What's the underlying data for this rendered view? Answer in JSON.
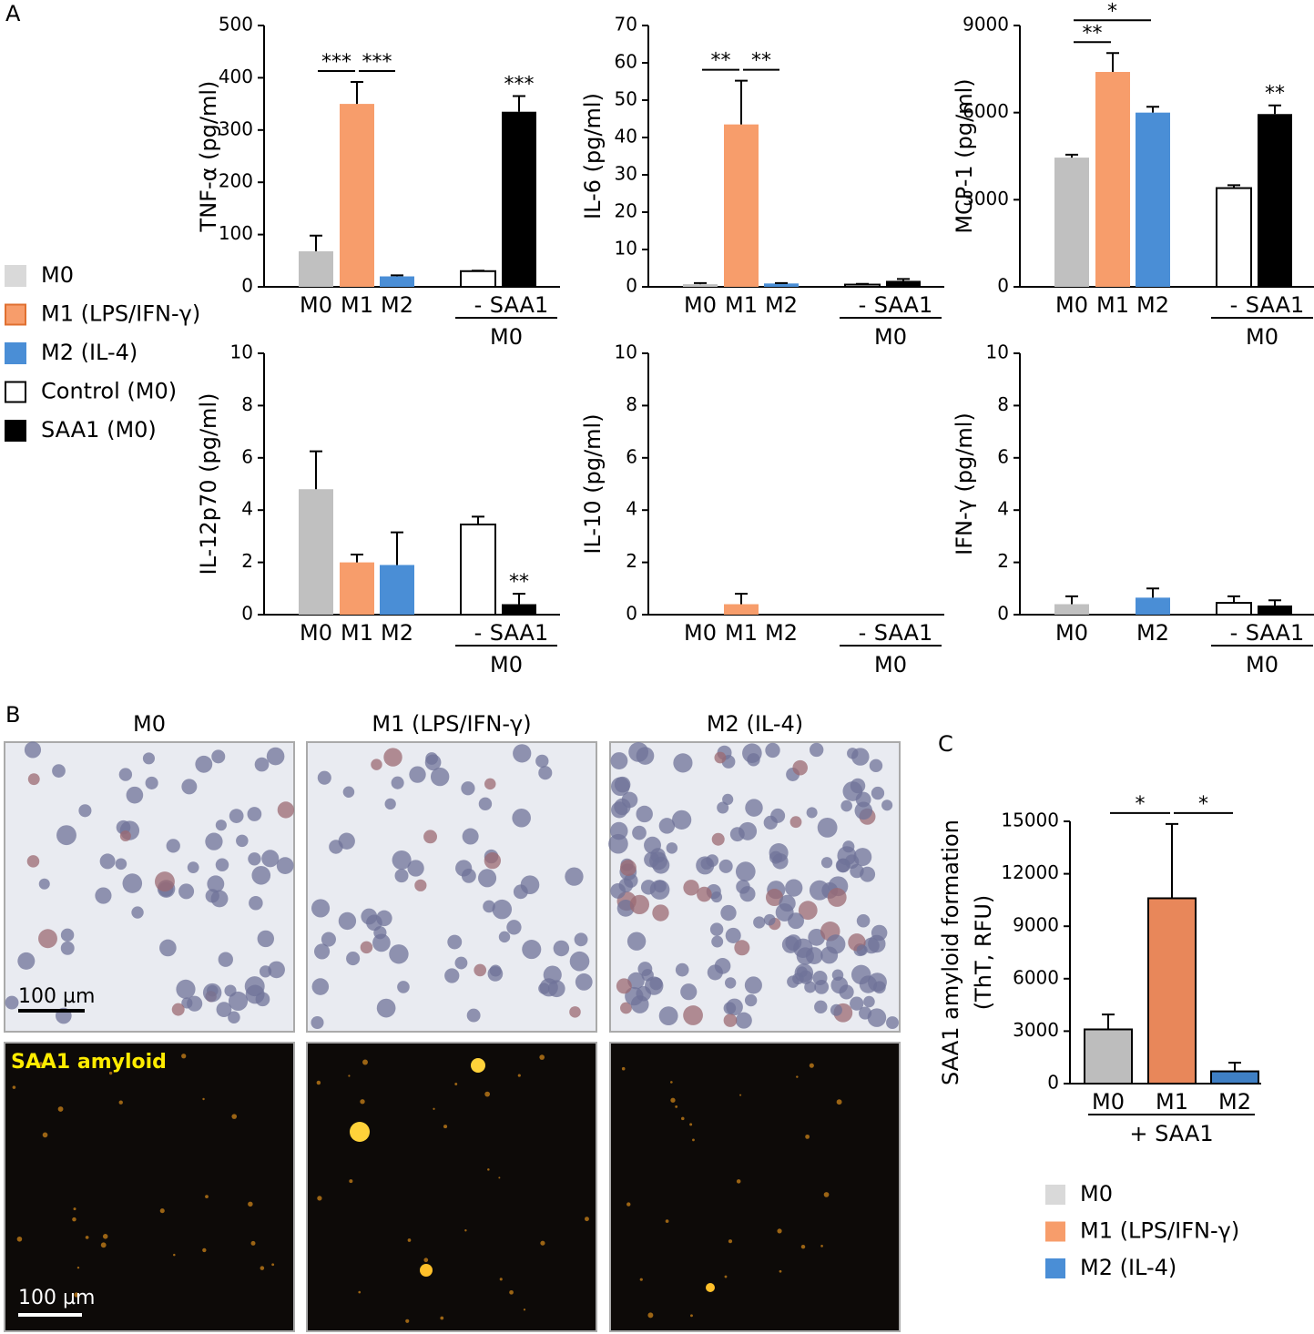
{
  "panel_labels": [
    "A",
    "B",
    "C"
  ],
  "legend_a": [
    {
      "name": "M0",
      "color": "#d9d9d9"
    },
    {
      "name": "M1 (LPS/IFN-γ)",
      "color": "#f79d6b"
    },
    {
      "name": "M2 (IL-4)",
      "color": "#4a8ed6"
    },
    {
      "name": "Control (M0)",
      "color": "#ffffff"
    },
    {
      "name": "SAA1 (M0)",
      "color": "#000000"
    }
  ],
  "panel_b": {
    "columns": [
      "M0",
      "M1 (LPS/IFN-γ)",
      "M2 (IL-4)"
    ],
    "scale_bar": "100 µm",
    "fluor_label": "SAA1 amyloid"
  },
  "chart_data": [
    {
      "type": "bar",
      "ylabel": "TNF-α (pg/ml)",
      "categories": [
        "M0",
        "M1",
        "M2",
        "-",
        "SAA1"
      ],
      "group_label": "M0",
      "values": [
        68,
        350,
        20,
        30,
        335
      ],
      "errors": [
        30,
        42,
        2,
        1,
        30
      ],
      "colors": [
        "#c0c0c0",
        "#f79d6b",
        "#4a8ed6",
        "#ffffff",
        "#000000"
      ],
      "ylim": [
        0,
        500
      ],
      "yticks": [
        0,
        100,
        200,
        300,
        400,
        500
      ],
      "annotations": [
        {
          "label": "***",
          "between": [
            0,
            1
          ]
        },
        {
          "label": "***",
          "between": [
            1,
            2
          ]
        },
        {
          "label": "***",
          "bar": 4
        }
      ]
    },
    {
      "type": "bar",
      "ylabel": "IL-6 (pg/ml)",
      "categories": [
        "M0",
        "M1",
        "M2",
        "-",
        "SAA1"
      ],
      "group_label": "M0",
      "values": [
        0.7,
        43.5,
        0.9,
        0.6,
        1.6
      ],
      "errors": [
        0.3,
        11.7,
        0.1,
        0.2,
        0.5
      ],
      "colors": [
        "#c0c0c0",
        "#f79d6b",
        "#4a8ed6",
        "#ffffff",
        "#000000"
      ],
      "ylim": [
        0,
        70
      ],
      "yticks": [
        0,
        10,
        20,
        30,
        40,
        50,
        60,
        70
      ],
      "annotations": [
        {
          "label": "**",
          "between": [
            0,
            1
          ]
        },
        {
          "label": "**",
          "between": [
            1,
            2
          ]
        }
      ]
    },
    {
      "type": "bar",
      "ylabel": "MCP-1 (pg/ml)",
      "categories": [
        "M0",
        "M1",
        "M2",
        "-",
        "SAA1"
      ],
      "group_label": "M0",
      "values": [
        4450,
        7400,
        6000,
        3400,
        5950
      ],
      "errors": [
        100,
        650,
        200,
        100,
        300
      ],
      "colors": [
        "#c0c0c0",
        "#f79d6b",
        "#4a8ed6",
        "#ffffff",
        "#000000"
      ],
      "ylim": [
        0,
        9000
      ],
      "yticks": [
        0,
        3000,
        6000,
        9000
      ],
      "annotations": [
        {
          "label": "**",
          "between": [
            0,
            1
          ]
        },
        {
          "label": "*",
          "between": [
            0,
            2
          ]
        },
        {
          "label": "**",
          "bar": 4
        }
      ]
    },
    {
      "type": "bar",
      "ylabel": "IL-12p70 (pg/ml)",
      "categories": [
        "M0",
        "M1",
        "M2",
        "-",
        "SAA1"
      ],
      "group_label": "M0",
      "values": [
        4.8,
        2.0,
        1.9,
        3.45,
        0.4
      ],
      "errors": [
        1.45,
        0.3,
        1.25,
        0.3,
        0.4
      ],
      "colors": [
        "#c0c0c0",
        "#f79d6b",
        "#4a8ed6",
        "#ffffff",
        "#000000"
      ],
      "ylim": [
        0,
        10
      ],
      "yticks": [
        0,
        2,
        4,
        6,
        8,
        10
      ],
      "annotations": [
        {
          "label": "**",
          "bar": 4
        }
      ]
    },
    {
      "type": "bar",
      "ylabel": "IL-10 (pg/ml)",
      "categories": [
        "M0",
        "M1",
        "M2",
        "-",
        "SAA1"
      ],
      "group_label": "M0",
      "values": [
        0,
        0.4,
        0,
        0,
        0
      ],
      "errors": [
        0,
        0.4,
        0,
        0,
        0
      ],
      "colors": [
        "#c0c0c0",
        "#f79d6b",
        "#4a8ed6",
        "#ffffff",
        "#000000"
      ],
      "ylim": [
        0,
        10
      ],
      "yticks": [
        0,
        2,
        4,
        6,
        8,
        10
      ],
      "annotations": []
    },
    {
      "type": "bar",
      "ylabel": "IFN-γ (pg/ml)",
      "categories": [
        "M0",
        null,
        "M2",
        "-",
        "SAA1"
      ],
      "group_label": "M0",
      "values": [
        0.4,
        null,
        0.65,
        0.45,
        0.35
      ],
      "errors": [
        0.3,
        null,
        0.35,
        0.25,
        0.2
      ],
      "colors": [
        "#c0c0c0",
        "#f79d6b",
        "#4a8ed6",
        "#ffffff",
        "#000000"
      ],
      "ylim": [
        0,
        10
      ],
      "yticks": [
        0,
        2,
        4,
        6,
        8,
        10
      ],
      "annotations": []
    },
    {
      "type": "bar",
      "ylabel": [
        "SAA1 amyloid formation",
        "(ThT, RFU)"
      ],
      "categories": [
        "M0",
        "M1",
        "M2"
      ],
      "group_label": "+ SAA1",
      "values": [
        3100,
        10600,
        700
      ],
      "errors": [
        850,
        4250,
        500
      ],
      "colors": [
        "#bdbdbd",
        "#e8875a",
        "#3f7fc4"
      ],
      "bar_outline": true,
      "ylim": [
        0,
        15000
      ],
      "yticks": [
        0,
        3000,
        6000,
        9000,
        12000,
        15000
      ],
      "annotations": [
        {
          "label": "*",
          "between": [
            0,
            1
          ]
        },
        {
          "label": "*",
          "between": [
            1,
            2
          ]
        }
      ],
      "legend": [
        {
          "name": "M0",
          "color": "#d9d9d9"
        },
        {
          "name": "M1 (LPS/IFN-γ)",
          "color": "#f79d6b"
        },
        {
          "name": "M2 (IL-4)",
          "color": "#4a8ed6"
        }
      ]
    }
  ]
}
